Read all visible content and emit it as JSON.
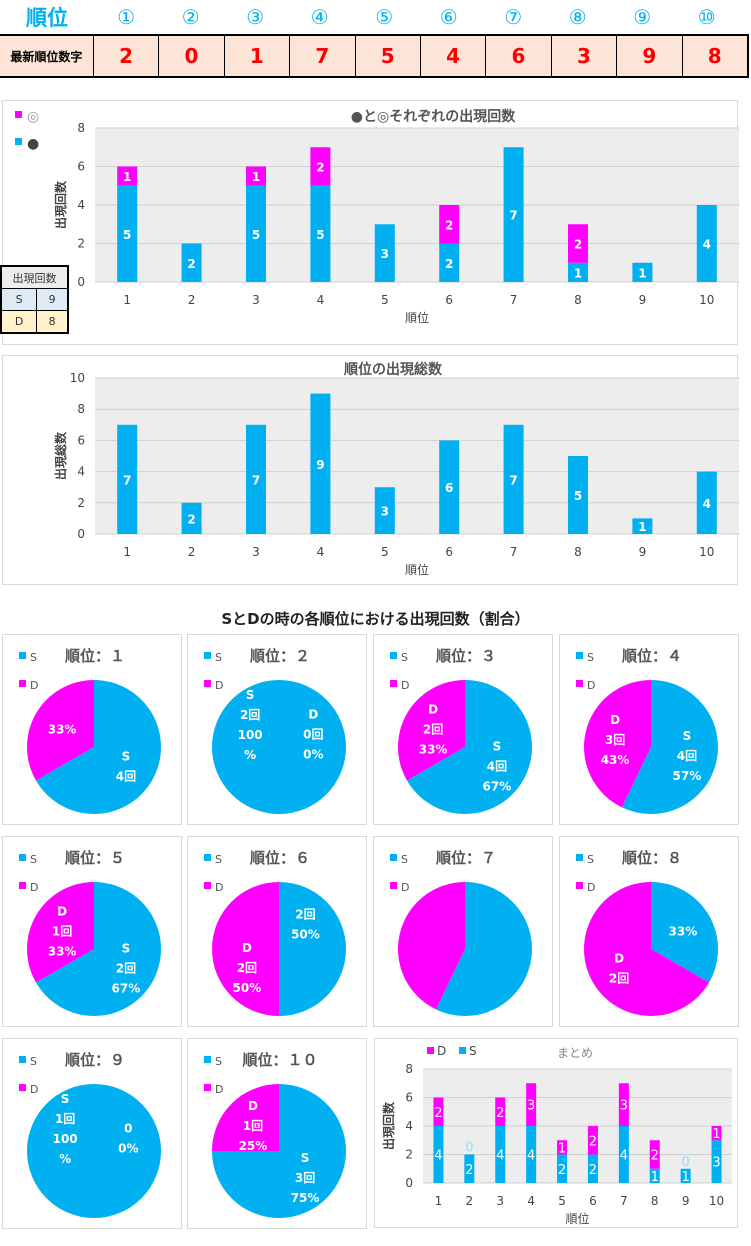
{
  "header": {
    "label": "順位",
    "positions": [
      "①",
      "②",
      "③",
      "④",
      "⑤",
      "⑥",
      "⑦",
      "⑧",
      "⑨",
      "⑩"
    ]
  },
  "latest": {
    "label": "最新順位数字",
    "digits": [
      "2",
      "0",
      "1",
      "7",
      "5",
      "4",
      "6",
      "3",
      "9",
      "8"
    ]
  },
  "mini_table": {
    "title": "出現回数",
    "rows": [
      {
        "k": "S",
        "v": "9"
      },
      {
        "k": "D",
        "v": "8"
      }
    ]
  },
  "section_title": "SとDの時の各順位における出現回数（割合）",
  "colors": {
    "cyan": "#00b0f0",
    "magenta": "#ff00ff"
  },
  "chart_data": [
    {
      "type": "bar",
      "stacked": true,
      "title": "●と◎それぞれの出現回数",
      "xlabel": "順位",
      "ylabel": "出現回数",
      "ylim": [
        0,
        8
      ],
      "yticks": [
        0,
        2,
        4,
        6,
        8
      ],
      "categories": [
        "1",
        "2",
        "3",
        "4",
        "5",
        "6",
        "7",
        "8",
        "9",
        "10"
      ],
      "series": [
        {
          "name": "●",
          "color": "#00b0f0",
          "values": [
            5,
            2,
            5,
            5,
            3,
            2,
            7,
            1,
            1,
            4
          ]
        },
        {
          "name": "◎",
          "color": "#ff00ff",
          "values": [
            1,
            0,
            1,
            2,
            0,
            2,
            0,
            2,
            0,
            0
          ]
        }
      ],
      "legend": "top-left"
    },
    {
      "type": "bar",
      "title": "順位の出現総数",
      "xlabel": "順位",
      "ylabel": "出現総数",
      "ylim": [
        0,
        10
      ],
      "yticks": [
        0,
        2,
        4,
        6,
        8,
        10
      ],
      "categories": [
        "1",
        "2",
        "3",
        "4",
        "5",
        "6",
        "7",
        "8",
        "9",
        "10"
      ],
      "series": [
        {
          "name": "総数",
          "color": "#00b0f0",
          "values": [
            7,
            2,
            7,
            9,
            3,
            6,
            7,
            5,
            1,
            4
          ]
        }
      ]
    },
    {
      "type": "pie",
      "pies": [
        {
          "title": "順位：１",
          "S": 4,
          "D": 2,
          "labelsS": [
            "S",
            "4回"
          ],
          "labelsD": [
            "33%"
          ]
        },
        {
          "title": "順位：２",
          "S": 2,
          "D": 0,
          "labelsS": [
            "S",
            "2回",
            "100",
            "%"
          ],
          "labelsD": [
            "D",
            "0回",
            "0%"
          ]
        },
        {
          "title": "順位：３",
          "S": 4,
          "D": 2,
          "labelsS": [
            "S",
            "4回",
            "67%"
          ],
          "labelsD": [
            "D",
            "2回",
            "33%"
          ]
        },
        {
          "title": "順位：４",
          "S": 4,
          "D": 3,
          "labelsS": [
            "S",
            "4回",
            "57%"
          ],
          "labelsD": [
            "D",
            "3回",
            "43%"
          ]
        },
        {
          "title": "順位：５",
          "S": 2,
          "D": 1,
          "labelsS": [
            "S",
            "2回",
            "67%"
          ],
          "labelsD": [
            "D",
            "1回",
            "33%"
          ]
        },
        {
          "title": "順位：６",
          "S": 2,
          "D": 2,
          "labelsS": [
            "2回",
            "50%"
          ],
          "labelsD": [
            "D",
            "2回",
            "50%"
          ]
        },
        {
          "title": "順位：７",
          "S": 4,
          "D": 3,
          "labelsS": [],
          "labelsD": []
        },
        {
          "title": "順位：８",
          "S": 1,
          "D": 2,
          "labelsS": [
            "33%"
          ],
          "labelsD": [
            "D",
            "2回"
          ]
        },
        {
          "title": "順位：９",
          "S": 1,
          "D": 0,
          "labelsS": [
            "S",
            "1回",
            "100",
            "%"
          ],
          "labelsD": [
            "0",
            "0%"
          ]
        },
        {
          "title": "順位：１０",
          "S": 3,
          "D": 1,
          "labelsS": [
            "S",
            "3回",
            "75%"
          ],
          "labelsD": [
            "D",
            "1回",
            "25%"
          ]
        }
      ],
      "legend": [
        "S",
        "D"
      ]
    },
    {
      "type": "bar",
      "stacked": true,
      "title": "まとめ",
      "xlabel": "順位",
      "ylabel": "出現回数",
      "ylim": [
        0,
        8
      ],
      "yticks": [
        0,
        2,
        4,
        6,
        8
      ],
      "categories": [
        "1",
        "2",
        "3",
        "4",
        "5",
        "6",
        "7",
        "8",
        "9",
        "10"
      ],
      "series": [
        {
          "name": "S",
          "color": "#00b0f0",
          "values": [
            4,
            2,
            4,
            4,
            2,
            2,
            4,
            1,
            1,
            3
          ]
        },
        {
          "name": "D",
          "color": "#ff00ff",
          "values": [
            2,
            0,
            2,
            3,
            1,
            2,
            3,
            2,
            0,
            1
          ]
        }
      ],
      "legend": "top-left"
    }
  ]
}
